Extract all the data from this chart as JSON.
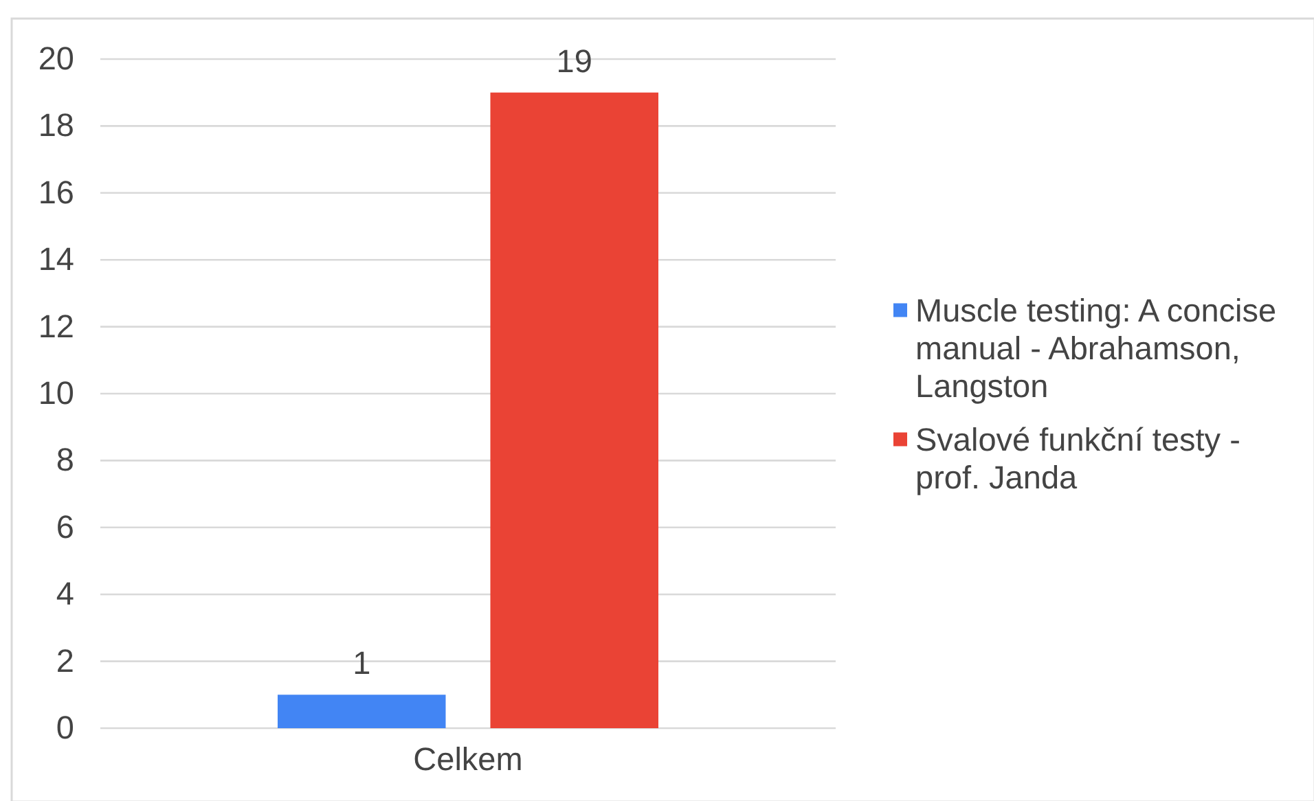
{
  "chart_data": {
    "type": "bar",
    "categories": [
      "Celkem"
    ],
    "series": [
      {
        "name": "Muscle testing: A concise manual - Abrahamson, Langston",
        "color": "#4285f4",
        "values": [
          1
        ]
      },
      {
        "name": "Svalové funkční testy - prof. Janda",
        "color": "#ea4335",
        "values": [
          19
        ]
      }
    ],
    "ylim": [
      0,
      20
    ],
    "yticks": [
      0,
      2,
      4,
      6,
      8,
      10,
      12,
      14,
      16,
      18,
      20
    ],
    "grid": "y",
    "legend": "right",
    "data_labels": true
  }
}
